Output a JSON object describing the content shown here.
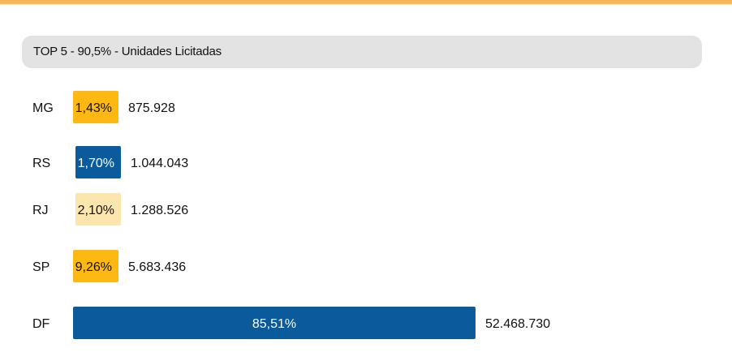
{
  "header": {
    "title": "TOP 5 - 90,5% - Unidades Licitadas"
  },
  "colors": {
    "accent": "#f6b75c",
    "header_bg": "#e3e3e3"
  },
  "chart_data": {
    "type": "bar",
    "orientation": "horizontal",
    "title": "TOP 5 - 90,5% - Unidades Licitadas",
    "categories": [
      "MG",
      "RS",
      "RJ",
      "SP",
      "DF"
    ],
    "percent_values": [
      1.43,
      1.7,
      2.1,
      9.26,
      85.51
    ],
    "percent_labels": [
      "1,43%",
      "1,70%",
      "2,10%",
      "9,26%",
      "85,51%"
    ],
    "values": [
      875928,
      1044043,
      1288526,
      5683436,
      52468730
    ],
    "value_labels": [
      "875.928",
      "1.044.043",
      "1.288.526",
      "5.683.436",
      "52.468.730"
    ],
    "bar_colors": [
      "#fdb813",
      "#0b5a9b",
      "#fde6ae",
      "#fdb813",
      "#0b5a9b"
    ],
    "label_colors": [
      "#111111",
      "#ffffff",
      "#111111",
      "#111111",
      "#ffffff"
    ],
    "grid": false,
    "legend": "none"
  }
}
